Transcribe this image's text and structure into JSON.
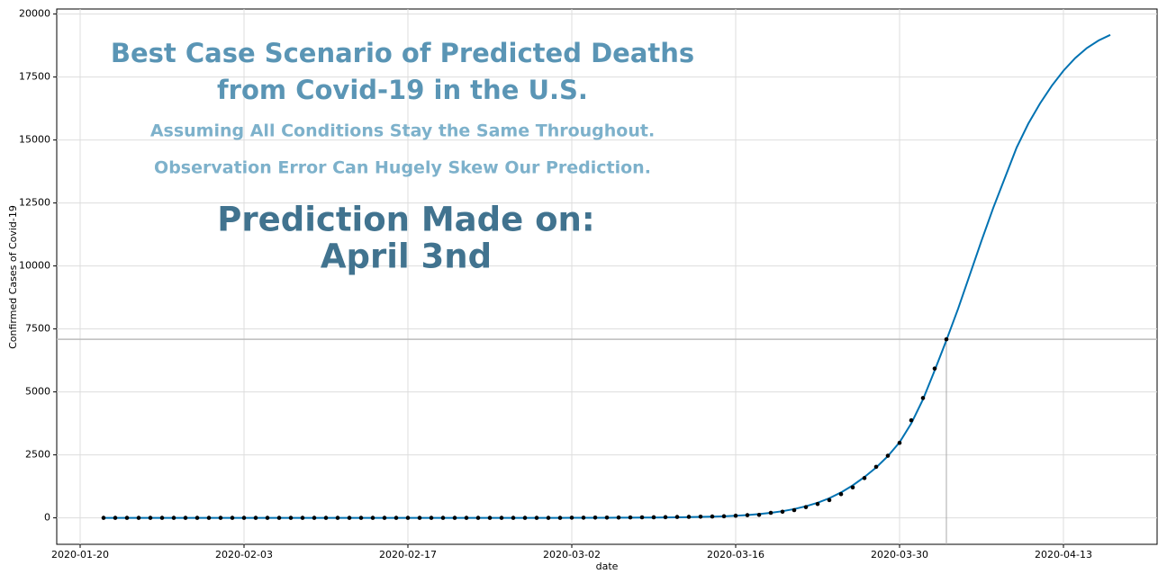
{
  "chart_data": {
    "type": "forecast",
    "annotations": {
      "title": [
        "Best Case Scenario of Predicted Deaths",
        "from Covid-19 in the U.S."
      ],
      "notes": [
        "Assuming All Conditions Stay the Same Throughout.",
        "Observation Error Can Hugely Skew Our Prediction."
      ],
      "made_on": [
        "Prediction Made on:",
        "April 3nd"
      ]
    },
    "x_label": "date",
    "y_label": "Confirmed Cases of Covid-19",
    "x": [
      "2020-01-22",
      "2020-01-23",
      "2020-01-24",
      "2020-01-25",
      "2020-01-26",
      "2020-01-27",
      "2020-01-28",
      "2020-01-29",
      "2020-01-30",
      "2020-01-31",
      "2020-02-01",
      "2020-02-02",
      "2020-02-03",
      "2020-02-04",
      "2020-02-05",
      "2020-02-06",
      "2020-02-07",
      "2020-02-08",
      "2020-02-09",
      "2020-02-10",
      "2020-02-11",
      "2020-02-12",
      "2020-02-13",
      "2020-02-14",
      "2020-02-15",
      "2020-02-16",
      "2020-02-17",
      "2020-02-18",
      "2020-02-19",
      "2020-02-20",
      "2020-02-21",
      "2020-02-22",
      "2020-02-23",
      "2020-02-24",
      "2020-02-25",
      "2020-02-26",
      "2020-02-27",
      "2020-02-28",
      "2020-02-29",
      "2020-03-01",
      "2020-03-02",
      "2020-03-03",
      "2020-03-04",
      "2020-03-05",
      "2020-03-06",
      "2020-03-07",
      "2020-03-08",
      "2020-03-09",
      "2020-03-10",
      "2020-03-11",
      "2020-03-12",
      "2020-03-13",
      "2020-03-14",
      "2020-03-15",
      "2020-03-16",
      "2020-03-17",
      "2020-03-18",
      "2020-03-19",
      "2020-03-20",
      "2020-03-21",
      "2020-03-22",
      "2020-03-23",
      "2020-03-24",
      "2020-03-25",
      "2020-03-26",
      "2020-03-27",
      "2020-03-28",
      "2020-03-29",
      "2020-03-30",
      "2020-03-31",
      "2020-04-01",
      "2020-04-02",
      "2020-04-03",
      "2020-04-04",
      "2020-04-05",
      "2020-04-06",
      "2020-04-07",
      "2020-04-08",
      "2020-04-09",
      "2020-04-10",
      "2020-04-11",
      "2020-04-12",
      "2020-04-13",
      "2020-04-14",
      "2020-04-15",
      "2020-04-16",
      "2020-04-17"
    ],
    "series": [
      {
        "style": "dots",
        "color": "#000000",
        "values": [
          0,
          0,
          0,
          0,
          0,
          0,
          0,
          0,
          0,
          0,
          0,
          0,
          0,
          0,
          0,
          0,
          0,
          0,
          0,
          0,
          0,
          0,
          0,
          0,
          0,
          0,
          0,
          0,
          0,
          0,
          0,
          0,
          0,
          0,
          0,
          0,
          0,
          0,
          1,
          1,
          6,
          7,
          11,
          12,
          14,
          17,
          21,
          22,
          28,
          36,
          40,
          47,
          54,
          63,
          85,
          108,
          118,
          200,
          244,
          307,
          427,
          552,
          706,
          942,
          1209,
          1581,
          2026,
          2467,
          2978,
          3873,
          4757,
          5926,
          7087,
          null,
          null,
          null,
          null,
          null,
          null,
          null,
          null,
          null,
          null,
          null,
          null,
          null,
          null
        ]
      },
      {
        "style": "line",
        "color": "#0072b2",
        "values": [
          0,
          0,
          0,
          0,
          0,
          0,
          0,
          0,
          0,
          0,
          0,
          0,
          0,
          0,
          0,
          0,
          0,
          0,
          0,
          0,
          0,
          0,
          0,
          0,
          0,
          0,
          0,
          0,
          0,
          0,
          0,
          0,
          0,
          0,
          0,
          0,
          0,
          0,
          0,
          1,
          2,
          3,
          4,
          5,
          7,
          9,
          11,
          14,
          18,
          23,
          29,
          37,
          48,
          63,
          84,
          112,
          150,
          200,
          265,
          350,
          460,
          600,
          780,
          1010,
          1290,
          1620,
          2000,
          2450,
          3000,
          3750,
          4700,
          5850,
          7050,
          8300,
          9650,
          11000,
          12300,
          13500,
          14700,
          15650,
          16450,
          17150,
          17750,
          18250,
          18650,
          18950,
          19170
        ]
      }
    ],
    "xlim": [
      "2020-01-18",
      "2020-04-21"
    ],
    "xticks": [
      "2020-01-20",
      "2020-02-03",
      "2020-02-17",
      "2020-03-02",
      "2020-03-16",
      "2020-03-30",
      "2020-04-13"
    ],
    "ylim": [
      -1050,
      20200
    ],
    "yticks": [
      0,
      2500,
      5000,
      7500,
      10000,
      12500,
      15000,
      17500,
      20000
    ],
    "grid": true,
    "reference_lines": {
      "y": 7087,
      "x": "2020-04-03"
    }
  }
}
